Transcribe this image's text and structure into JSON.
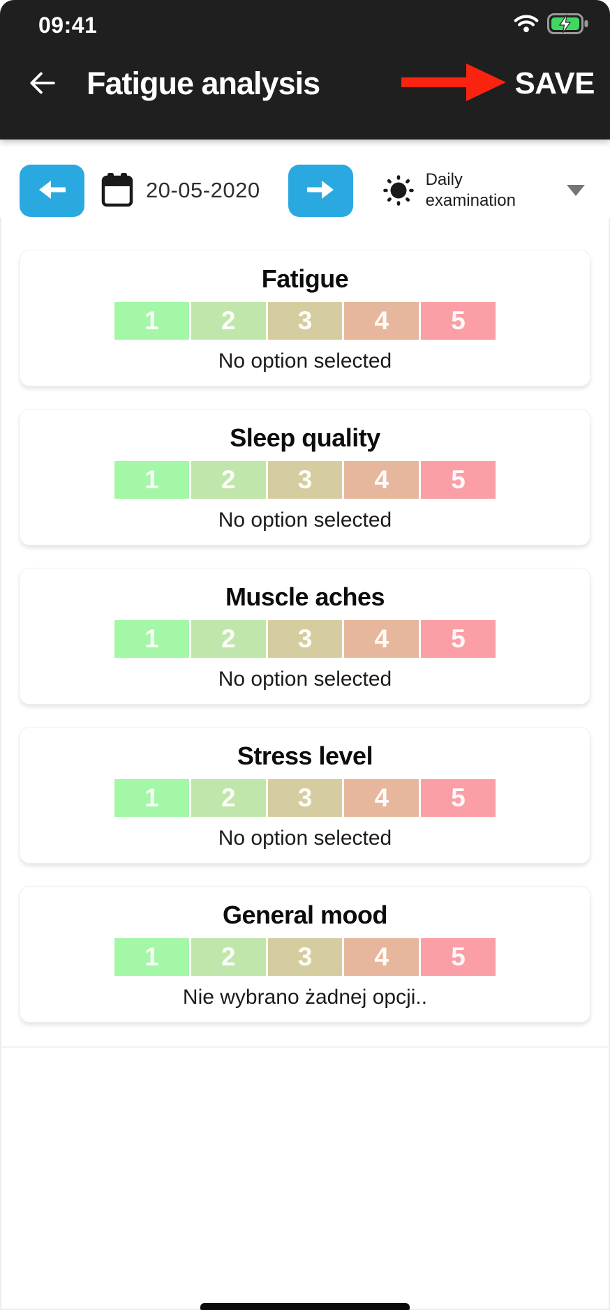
{
  "status_bar": {
    "time": "09:41",
    "wifi_icon": "wifi",
    "battery_icon": "battery-charging"
  },
  "header": {
    "back_icon": "back-arrow",
    "title": "Fatigue analysis",
    "save_label": "SAVE",
    "annotation_icon": "red-arrow-pointing-to-save"
  },
  "toolbar": {
    "prev_icon": "arrow-left",
    "calendar_icon": "calendar",
    "date": "20-05-2020",
    "next_icon": "arrow-right",
    "exam_icon": "sun",
    "exam_label": "Daily examination",
    "dropdown_icon": "chevron-down"
  },
  "scale": {
    "labels": [
      "1",
      "2",
      "3",
      "4",
      "5"
    ],
    "colors": [
      "#a3f7a6",
      "#c1e6ac",
      "#d5cda0",
      "#e6b79d",
      "#fc9ea6"
    ]
  },
  "cards": [
    {
      "title": "Fatigue",
      "status": "No option selected"
    },
    {
      "title": "Sleep quality",
      "status": "No option selected"
    },
    {
      "title": "Muscle aches",
      "status": "No option selected"
    },
    {
      "title": "Stress level",
      "status": "No option selected"
    },
    {
      "title": "General mood",
      "status": "Nie wybrano żadnej opcji.."
    }
  ],
  "colors": {
    "header_bg": "#1f1f1f",
    "accent_blue": "#2aa9e1",
    "arrow_red": "#f92310",
    "battery_green": "#3fd863"
  }
}
